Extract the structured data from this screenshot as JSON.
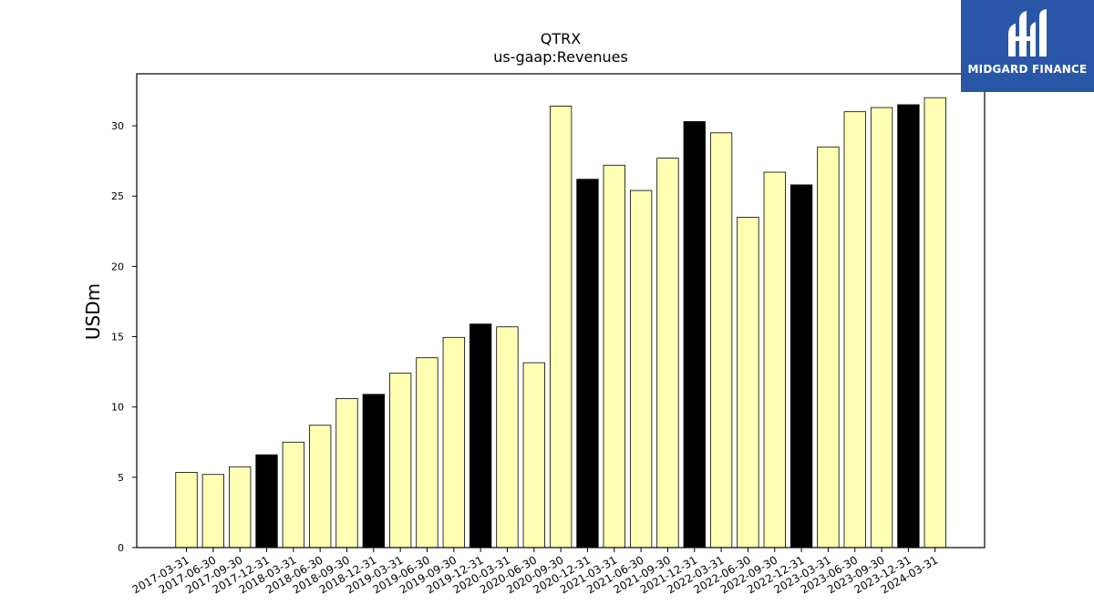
{
  "chart_data": {
    "type": "bar",
    "title": "QTRX",
    "subtitle": "us-gaap:Revenues",
    "xlabel": "",
    "ylabel": "USDm",
    "ylim": [
      0,
      33.7
    ],
    "yticks": [
      0,
      5,
      10,
      15,
      20,
      25,
      30
    ],
    "grid": false,
    "legend": "none",
    "colors": {
      "bar": "#ffffb3",
      "highlight": "#000000",
      "edge": "#000000"
    },
    "categories": [
      "2017-03-31",
      "2017-06-30",
      "2017-09-30",
      "2017-12-31",
      "2018-03-31",
      "2018-06-30",
      "2018-09-30",
      "2018-12-31",
      "2019-03-31",
      "2019-06-30",
      "2019-09-30",
      "2019-12-31",
      "2020-03-31",
      "2020-06-30",
      "2020-09-30",
      "2020-12-31",
      "2021-03-31",
      "2021-06-30",
      "2021-09-30",
      "2021-12-31",
      "2022-03-31",
      "2022-06-30",
      "2022-09-30",
      "2022-12-31",
      "2023-03-31",
      "2023-06-30",
      "2023-09-30",
      "2023-12-31",
      "2024-03-31"
    ],
    "values": [
      5.35,
      5.2,
      5.75,
      6.6,
      7.5,
      8.7,
      10.6,
      10.9,
      12.4,
      13.5,
      14.95,
      15.9,
      15.7,
      13.15,
      31.4,
      26.2,
      27.2,
      25.4,
      27.7,
      30.3,
      29.5,
      23.5,
      26.7,
      25.8,
      28.5,
      31.0,
      31.3,
      31.5,
      32.0
    ],
    "highlighted": [
      false,
      false,
      false,
      true,
      false,
      false,
      false,
      true,
      false,
      false,
      false,
      true,
      false,
      false,
      false,
      true,
      false,
      false,
      false,
      true,
      false,
      false,
      false,
      true,
      false,
      false,
      false,
      true,
      false
    ]
  },
  "logo": {
    "text": "MIDGARD FINANCE",
    "icon": "midgard-logo-icon"
  }
}
